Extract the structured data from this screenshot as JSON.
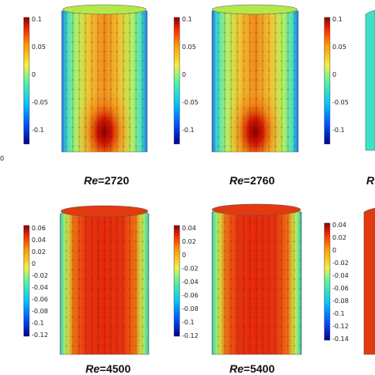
{
  "left_edge_fragment": "0",
  "row1": {
    "colorbars": [
      {
        "ticks": [
          "0.1",
          "0.05",
          "0",
          "-0.05",
          "-0.1"
        ]
      },
      {
        "ticks": [
          "0.1",
          "0.05",
          "0",
          "-0.05",
          "-0.1"
        ]
      },
      {
        "ticks": [
          "0.1",
          "0.05",
          "0",
          "-0.05",
          "-0.1"
        ]
      }
    ],
    "labels": [
      {
        "prefix": "Re",
        "value": "=2720"
      },
      {
        "prefix": "Re",
        "value": "=2760"
      },
      {
        "prefix": "R",
        "value": ""
      }
    ]
  },
  "row2": {
    "colorbars": [
      {
        "ticks": [
          "0.06",
          "0.04",
          "0.02",
          "0",
          "-0.02",
          "-0.04",
          "-0.06",
          "-0.08",
          "-0.1",
          "-0.12"
        ]
      },
      {
        "ticks": [
          "0.04",
          "0.02",
          "0",
          "-0.02",
          "-0.04",
          "-0.06",
          "-0.08",
          "-0.1",
          "-0.12"
        ]
      },
      {
        "ticks": [
          "0.04",
          "0.02",
          "0",
          "-0.02",
          "-0.04",
          "-0.06",
          "-0.08",
          "-0.1",
          "-0.12",
          "-0.14"
        ]
      }
    ],
    "labels": [
      {
        "prefix": "Re",
        "value": "=4500"
      },
      {
        "prefix": "Re",
        "value": "=5400"
      }
    ]
  },
  "colormap": [
    "#00008f",
    "#0050ff",
    "#00c8ff",
    "#5cf5a0",
    "#f5f040",
    "#ff9a00",
    "#ff2a00",
    "#8a0000"
  ]
}
